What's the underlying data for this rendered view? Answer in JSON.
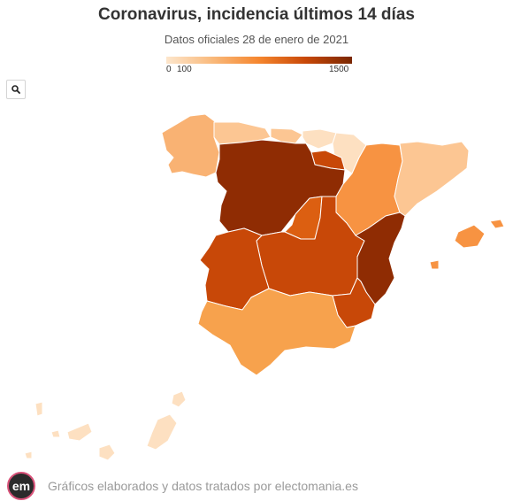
{
  "header": {
    "title": "Coronavirus, incidencia últimos 14 días",
    "subtitle": "Datos oficiales 28 de enero de 2021"
  },
  "legend": {
    "labels": [
      "0",
      "100",
      "1500"
    ],
    "scale_min": 0,
    "scale_max": 1500,
    "color_stops": [
      "#fde6cc",
      "#f9b97b",
      "#f5862e",
      "#c84808",
      "#7a2702"
    ]
  },
  "controls": {
    "search_icon": "search-icon"
  },
  "colors": {
    "lightest": "#fde0c1",
    "light": "#fcc693",
    "medium_light": "#f9b273",
    "medium": "#f7a24d",
    "medium_dark": "#f79342",
    "dark": "#dc5f11",
    "darker": "#c84808",
    "darkest": "#8f2c03"
  },
  "footer": {
    "logo_text": "em",
    "credit": "Gráficos elaborados y datos tratados por electomania.es"
  }
}
